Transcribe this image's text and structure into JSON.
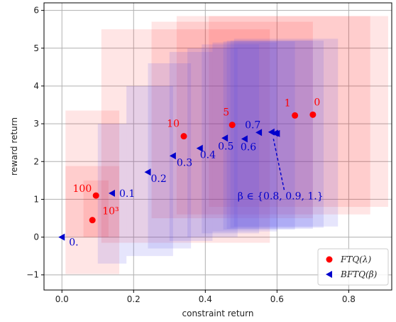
{
  "chart_data": {
    "type": "scatter",
    "xlabel": "constraint return",
    "ylabel": "reward return",
    "xlim": [
      -0.05,
      0.92
    ],
    "ylim": [
      -1.4,
      6.2
    ],
    "xticks": [
      0.0,
      0.2,
      0.4,
      0.6,
      0.8
    ],
    "xtick_labels": [
      "0.0",
      "0.2",
      "0.4",
      "0.6",
      "0.8"
    ],
    "yticks": [
      -1,
      0,
      1,
      2,
      3,
      4,
      5,
      6
    ],
    "ytick_labels": [
      "−1",
      "0",
      "1",
      "2",
      "3",
      "4",
      "5",
      "6"
    ],
    "grid": true,
    "legend_position": "lower-right",
    "colors": {
      "ftq": "#ff0000",
      "bftq": "#0000cc",
      "ftq_box_fill": "#ff0000",
      "bftq_box_fill": "#5a50e8"
    },
    "series": [
      {
        "name": "FTQ(λ)",
        "marker": "circle",
        "points": [
          {
            "x": 0.085,
            "y": 0.45,
            "label": "10³"
          },
          {
            "x": 0.095,
            "y": 1.1,
            "label": "100"
          },
          {
            "x": 0.34,
            "y": 2.67,
            "label": "10"
          },
          {
            "x": 0.475,
            "y": 2.97,
            "label": "5"
          },
          {
            "x": 0.65,
            "y": 3.22,
            "label": "1"
          },
          {
            "x": 0.7,
            "y": 3.24,
            "label": "0"
          }
        ]
      },
      {
        "name": "BFTQ(β)",
        "marker": "triangle-left",
        "points": [
          {
            "x": 0.0,
            "y": 0.0,
            "label": "0."
          },
          {
            "x": 0.14,
            "y": 1.16,
            "label": "0.1"
          },
          {
            "x": 0.24,
            "y": 1.72,
            "label": "0.2"
          },
          {
            "x": 0.31,
            "y": 2.15,
            "label": "0.3"
          },
          {
            "x": 0.385,
            "y": 2.35,
            "label": "0.4"
          },
          {
            "x": 0.455,
            "y": 2.62,
            "label": "0.5"
          },
          {
            "x": 0.51,
            "y": 2.6,
            "label": "0.6"
          },
          {
            "x": 0.55,
            "y": 2.77,
            "label": "0.7"
          },
          {
            "x": 0.585,
            "y": 2.78,
            "label": ""
          },
          {
            "x": 0.595,
            "y": 2.75,
            "label": ""
          },
          {
            "x": 0.6,
            "y": 2.74,
            "label": ""
          }
        ]
      }
    ],
    "ftq_boxes": [
      {
        "x0": 0.01,
        "x1": 0.16,
        "y0": -0.98,
        "y1": 1.88
      },
      {
        "x0": 0.01,
        "x1": 0.16,
        "y0": 0.0,
        "y1": 3.35
      },
      {
        "x0": 0.11,
        "x1": 0.58,
        "y0": -0.15,
        "y1": 5.5
      },
      {
        "x0": 0.25,
        "x1": 0.7,
        "y0": 0.5,
        "y1": 5.7
      },
      {
        "x0": 0.32,
        "x1": 0.86,
        "y0": 0.6,
        "y1": 5.85
      },
      {
        "x0": 0.41,
        "x1": 0.91,
        "y0": 0.8,
        "y1": 5.85
      },
      {
        "x0": 0.06,
        "x1": 0.13,
        "y0": 0.0,
        "y1": 1.5
      }
    ],
    "bftq_boxes": [
      {
        "x0": 0.1,
        "x1": 0.18,
        "y0": -0.7,
        "y1": 3.0
      },
      {
        "x0": 0.18,
        "x1": 0.31,
        "y0": -0.5,
        "y1": 4.0
      },
      {
        "x0": 0.24,
        "x1": 0.36,
        "y0": -0.3,
        "y1": 4.6
      },
      {
        "x0": 0.3,
        "x1": 0.42,
        "y0": -0.1,
        "y1": 4.9
      },
      {
        "x0": 0.35,
        "x1": 0.49,
        "y0": 0.0,
        "y1": 5.0
      },
      {
        "x0": 0.39,
        "x1": 0.55,
        "y0": 0.1,
        "y1": 5.1
      },
      {
        "x0": 0.42,
        "x1": 0.6,
        "y0": 0.15,
        "y1": 5.15
      },
      {
        "x0": 0.45,
        "x1": 0.65,
        "y0": 0.2,
        "y1": 5.18
      },
      {
        "x0": 0.46,
        "x1": 0.7,
        "y0": 0.22,
        "y1": 5.2
      },
      {
        "x0": 0.47,
        "x1": 0.73,
        "y0": 0.25,
        "y1": 5.2
      },
      {
        "x0": 0.48,
        "x1": 0.77,
        "y0": 0.28,
        "y1": 5.25
      }
    ],
    "annotation": {
      "text": "β ∈ {0.8, 0.9, 1.}"
    }
  }
}
